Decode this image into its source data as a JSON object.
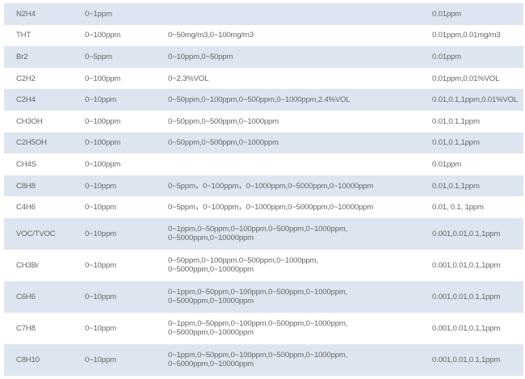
{
  "rows": [
    {
      "gas": "N2H4",
      "range": "0~1ppm",
      "options": "",
      "resolution": "0.01ppm"
    },
    {
      "gas": "THT",
      "range": "0~100ppm",
      "options": "0~50mg/m3,0~100mg/m3",
      "resolution": "0.01ppm,0.01mg/m3"
    },
    {
      "gas": "Br2",
      "range": "0~5ppm",
      "options": "0~10ppm,0~50ppm",
      "resolution": "0.01ppm"
    },
    {
      "gas": "C2H2",
      "range": "0~100ppm",
      "options": "0~2.3%VOL",
      "resolution": "0.01ppm,0.01%VOL"
    },
    {
      "gas": "C2H4",
      "range": "0~10ppm",
      "options": "0~50ppm,0~100ppm,0~500ppm,0~1000ppm,2.4%VOL",
      "resolution": "0.01,0.1,1ppm,0.01%VOL"
    },
    {
      "gas": "CH3OH",
      "range": "0~100ppm",
      "options": "0~50ppm,0~500ppm,0~1000ppm",
      "resolution": "0.01,0.1,1ppm"
    },
    {
      "gas": "C2H5OH",
      "range": "0~100ppm",
      "options": "0~50ppm,0~500ppm,0~1000ppm",
      "resolution": "0.01,0.1,1ppm"
    },
    {
      "gas": "CH4S",
      "range": "0~100ppm",
      "options": "",
      "resolution": "0.01ppm"
    },
    {
      "gas": "C8H8",
      "range": "0~10ppm",
      "options": "0~5ppm，0~100ppm，0~1000ppm,0~5000ppm,0~10000ppm",
      "resolution": "0.01,0.1,1ppm"
    },
    {
      "gas": "C4H6",
      "range": "0~10ppm",
      "options": "0~5ppm，0~100ppm，0~1000ppm,0~5000ppm,0~10000ppm",
      "resolution": "0.01, 0.1, 1ppm"
    },
    {
      "gas": "VOC/TVOC",
      "range": "0~10ppm",
      "options": "0~1ppm,0~50ppm,0~100ppm.0~500ppm,0~1000ppm,\n0~5000ppm,0~10000ppm",
      "resolution": "0.001,0.01,0.1,1ppm"
    },
    {
      "gas": "CH3Br",
      "range": "0~10ppm",
      "options": "0~50ppm,0~100ppm.0~500ppm,0~1000ppm,\n0~5000ppm,0~10000ppm",
      "resolution": "0.001,0.01,0.1,1ppm"
    },
    {
      "gas": "C6H6",
      "range": "0~10ppm",
      "options": "0~1ppm,0~50ppm,0~100ppm,0~500ppm,0~1000ppm,\n0~5000ppm,0~10000ppm",
      "resolution": "0.001,0.01,0.1,1ppm"
    },
    {
      "gas": "C7H8",
      "range": "0~10ppm",
      "options": "0~1ppm,0~50ppm,0~100ppm.0~500ppm,0~1000ppm,\n0~5000ppm,0~10000ppm",
      "resolution": "0.001,0.01,0.1,1ppm"
    },
    {
      "gas": "C8H10",
      "range": "0~10ppm",
      "options": "0~1ppm,0~50ppm,0~100ppm,0~500ppm,0~1000ppm,\n0~5000ppm,0~10000ppm",
      "resolution": "0.001,0.01,0.1,1ppm"
    }
  ],
  "colors": {
    "shade": "#dde6f0",
    "text": "#666666"
  }
}
